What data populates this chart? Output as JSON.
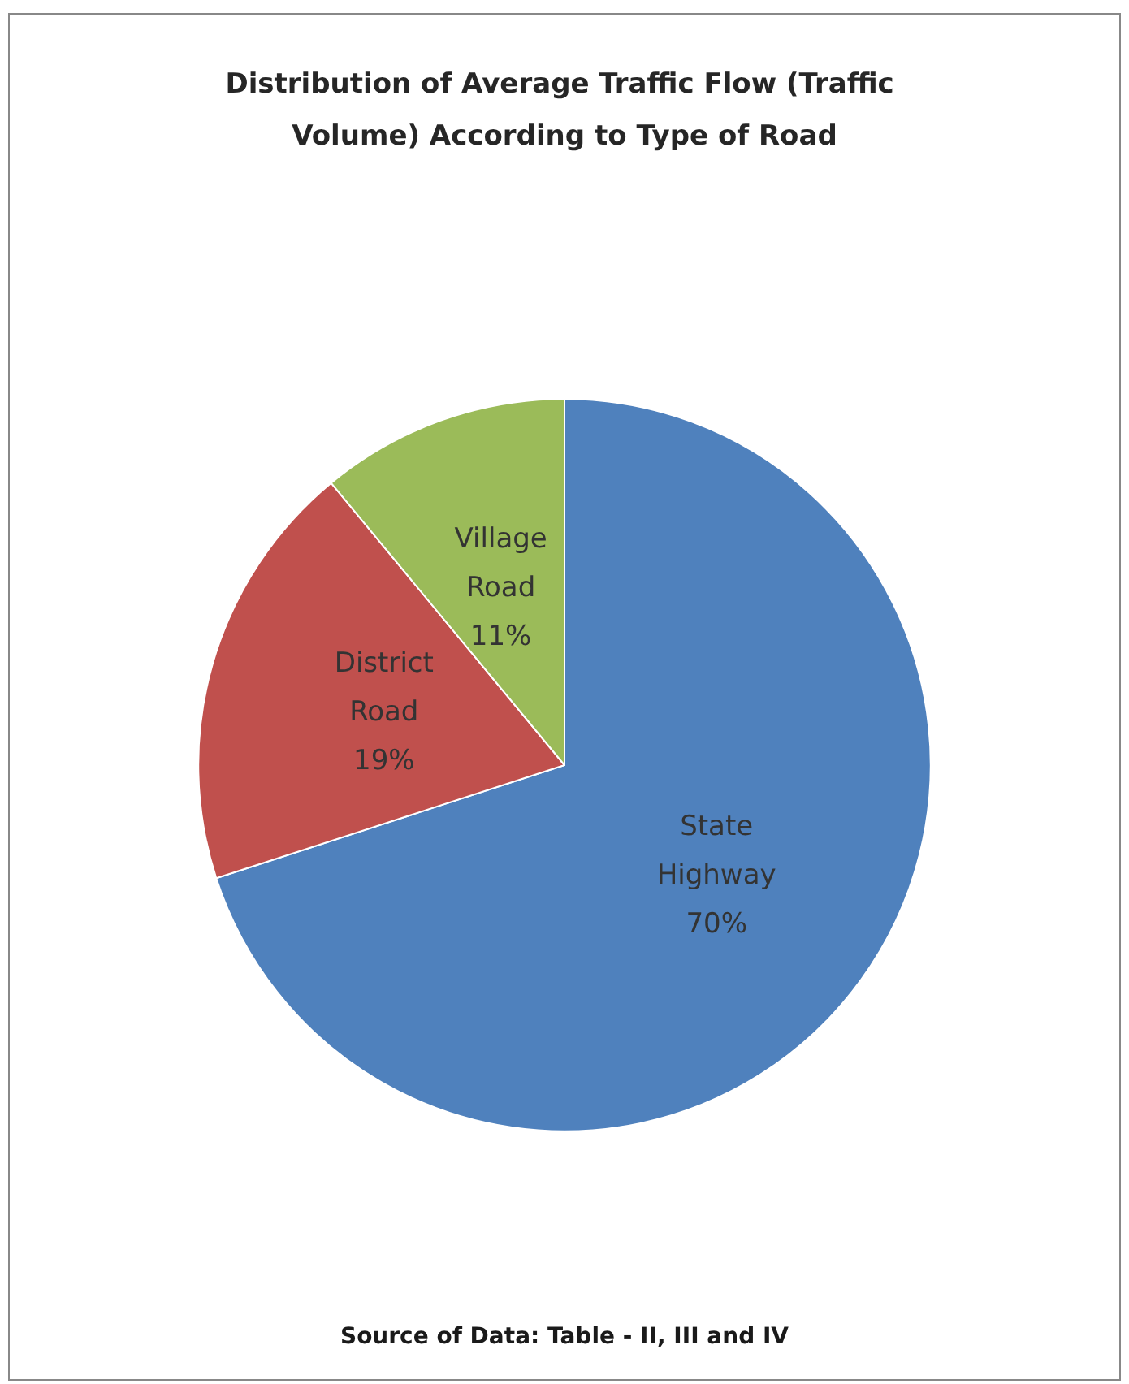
{
  "chart_data": {
    "type": "pie",
    "title": "Distribution of Average Traffic Flow (Traffic Volume) According to Type of Road",
    "categories": [
      "State Highway",
      "District Road",
      "Village Road"
    ],
    "values": [
      70,
      19,
      11
    ],
    "colors": [
      "#4f81bd",
      "#c0504d",
      "#9bbb59"
    ],
    "annotations": [
      "Source of Data: Table - II, III and IV"
    ],
    "value_labels": [
      "70%",
      "19%",
      "11%"
    ],
    "legend": false
  }
}
